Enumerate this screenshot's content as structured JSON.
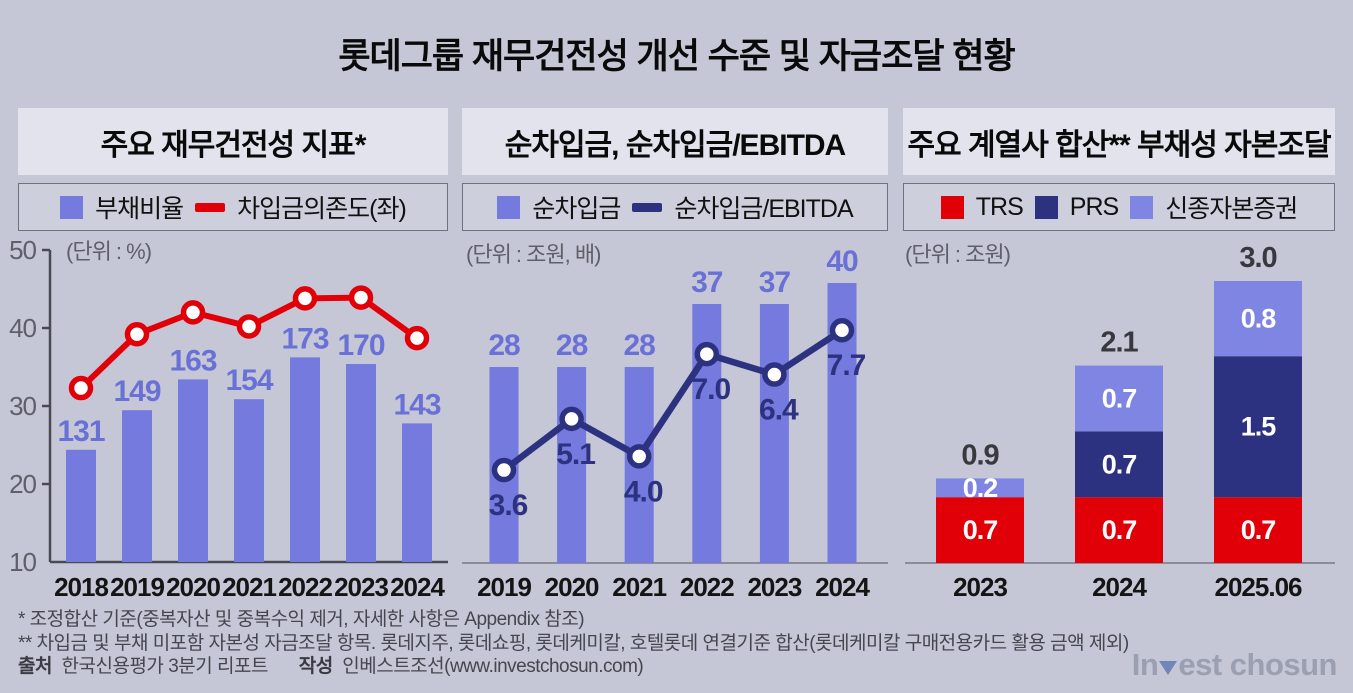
{
  "title": "롯데그룹 재무건전성 개선 수준 및 자금조달 현황",
  "colors": {
    "background": "#c5c7d6",
    "panel_header_bg": "#e2e3ec",
    "legend_box_bg": "#cdcfdc",
    "bar_blue": "#747ade",
    "light_blue": "#7f85e3",
    "navy": "#2c3280",
    "red": "#e10008",
    "label_blue": "#6a71d6",
    "axis_dark": "#4a4a55",
    "baseline_gray": "#8b8b99",
    "tick_gray": "#5f5f6a",
    "x_label": "#141414",
    "total_label": "#38383f",
    "marker_fill": "#ffffff"
  },
  "panels": [
    {
      "header": "주요 재무건전성 지표*",
      "unit": "(단위 : %)",
      "legend": [
        {
          "type": "square",
          "color_key": "bar_blue",
          "label": "부채비율"
        },
        {
          "type": "dash",
          "color_key": "red",
          "label": "차입금의존도(좌)"
        }
      ]
    },
    {
      "header": "순차입금, 순차입금/EBITDA",
      "unit": "(단위 : 조원, 배)",
      "legend": [
        {
          "type": "square",
          "color_key": "bar_blue",
          "label": "순차입금"
        },
        {
          "type": "dash",
          "color_key": "navy",
          "label": "순차입금/EBITDA"
        }
      ]
    },
    {
      "header": "주요 계열사 합산** 부채성 자본조달",
      "unit": "(단위 : 조원)",
      "legend": [
        {
          "type": "square",
          "color_key": "red",
          "label": "TRS"
        },
        {
          "type": "square",
          "color_key": "navy",
          "label": "PRS"
        },
        {
          "type": "square",
          "color_key": "light_blue",
          "label": "신종자본증권"
        }
      ]
    }
  ],
  "chart_data": [
    {
      "type": "bar+line",
      "title": "주요 재무건전성 지표*",
      "unit": "(단위 : %)",
      "categories": [
        "2018",
        "2019",
        "2020",
        "2021",
        "2022",
        "2023",
        "2024"
      ],
      "series": [
        {
          "name": "부채비율",
          "type": "bar",
          "unit": "%",
          "values": [
            131,
            149,
            163,
            154,
            173,
            170,
            143
          ],
          "labels_shown": true
        },
        {
          "name": "차입금의존도(좌)",
          "type": "line",
          "unit": "%",
          "axis": "left",
          "values": [
            32.3,
            39.2,
            42.0,
            40.2,
            43.8,
            43.9,
            38.7
          ],
          "labels_shown": false
        }
      ],
      "left_axis": {
        "min": 10,
        "max": 50,
        "ticks": [
          10,
          20,
          30,
          40,
          50
        ]
      },
      "grid": false,
      "legend_position": "top"
    },
    {
      "type": "bar+line",
      "title": "순차입금, 순차입금/EBITDA",
      "unit": "(단위 : 조원, 배)",
      "categories": [
        "2019",
        "2020",
        "2021",
        "2022",
        "2023",
        "2024"
      ],
      "series": [
        {
          "name": "순차입금",
          "type": "bar",
          "unit": "조원",
          "values": [
            28,
            28,
            28,
            37,
            37,
            40
          ],
          "labels_shown": true
        },
        {
          "name": "순차입금/EBITDA",
          "type": "line",
          "unit": "배",
          "values": [
            3.6,
            5.1,
            4.0,
            7.0,
            6.4,
            7.7
          ],
          "labels_shown": true
        }
      ],
      "left_axis": null,
      "grid": false,
      "legend_position": "top"
    },
    {
      "type": "stacked-bar",
      "title": "주요 계열사 합산** 부채성 자본조달",
      "unit": "(단위 : 조원)",
      "categories": [
        "2023",
        "2024",
        "2025.06"
      ],
      "series": [
        {
          "name": "TRS",
          "color_key": "red",
          "values": [
            0.7,
            0.7,
            0.7
          ]
        },
        {
          "name": "PRS",
          "color_key": "navy",
          "values": [
            0,
            0.7,
            1.5
          ]
        },
        {
          "name": "신종자본증권",
          "color_key": "light_blue",
          "values": [
            0.2,
            0.7,
            0.8
          ]
        }
      ],
      "totals": [
        "0.9",
        "2.1",
        "3.0"
      ],
      "left_axis": null,
      "grid": false,
      "legend_position": "top"
    }
  ],
  "footnotes": [
    "* 조정합산 기준(중복자산 및 중복수익 제거, 자세한 사항은 Appendix 참조)",
    "** 차입금 및 부채 미포함 자본성 자금조달 항목. 롯데지주, 롯데쇼핑, 롯데케미칼, 호텔롯데 연결기준 합산(롯데케미칼 구매전용카드 활용 금액 제외)"
  ],
  "source": {
    "source_label": "출처",
    "source_text": "한국신용평가 3분기 리포트",
    "author_label": "작성",
    "author_text": "인베스트조선(www.investchosun.com)"
  },
  "logo": {
    "prefix": "In",
    "suffix": "est chosun",
    "full": "Invest chosun"
  }
}
